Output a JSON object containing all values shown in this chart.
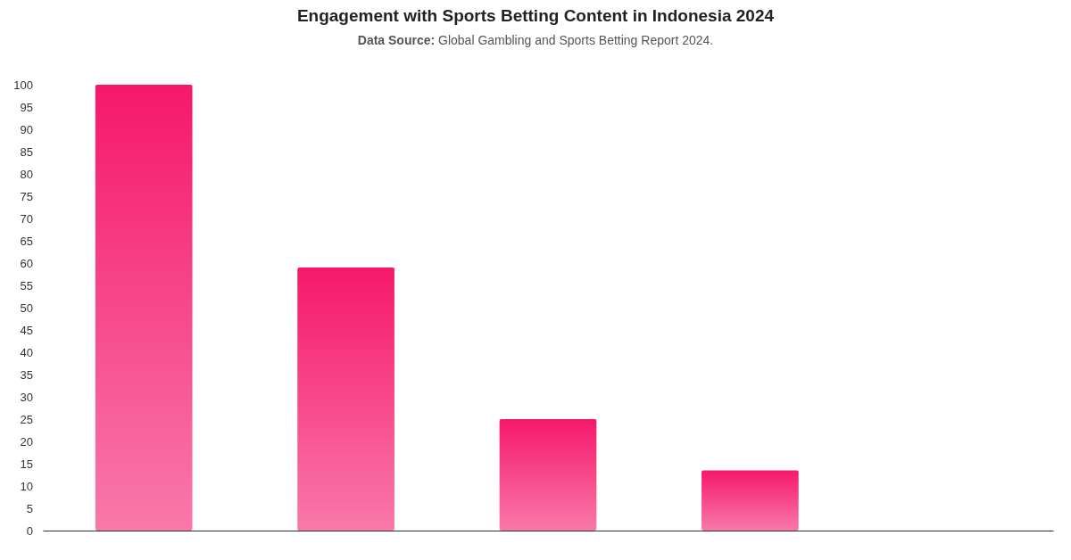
{
  "chart_data": {
    "type": "bar",
    "title": "Engagement with Sports Betting Content in Indonesia 2024",
    "subtitle": "Data Source: Global Gambling and Sports Betting Report 2024.",
    "categories": [
      null,
      null,
      null,
      null,
      null
    ],
    "values": [
      100,
      59,
      25,
      13.5,
      0
    ],
    "color": "#f5186b",
    "ylim": [
      0,
      100
    ],
    "yticks": [
      0,
      5,
      10,
      15,
      20,
      25,
      30,
      35,
      40,
      45,
      50,
      55,
      60,
      65,
      70,
      75,
      80,
      85,
      90,
      95,
      100
    ],
    "tick_labels": "y",
    "grid": false
  }
}
